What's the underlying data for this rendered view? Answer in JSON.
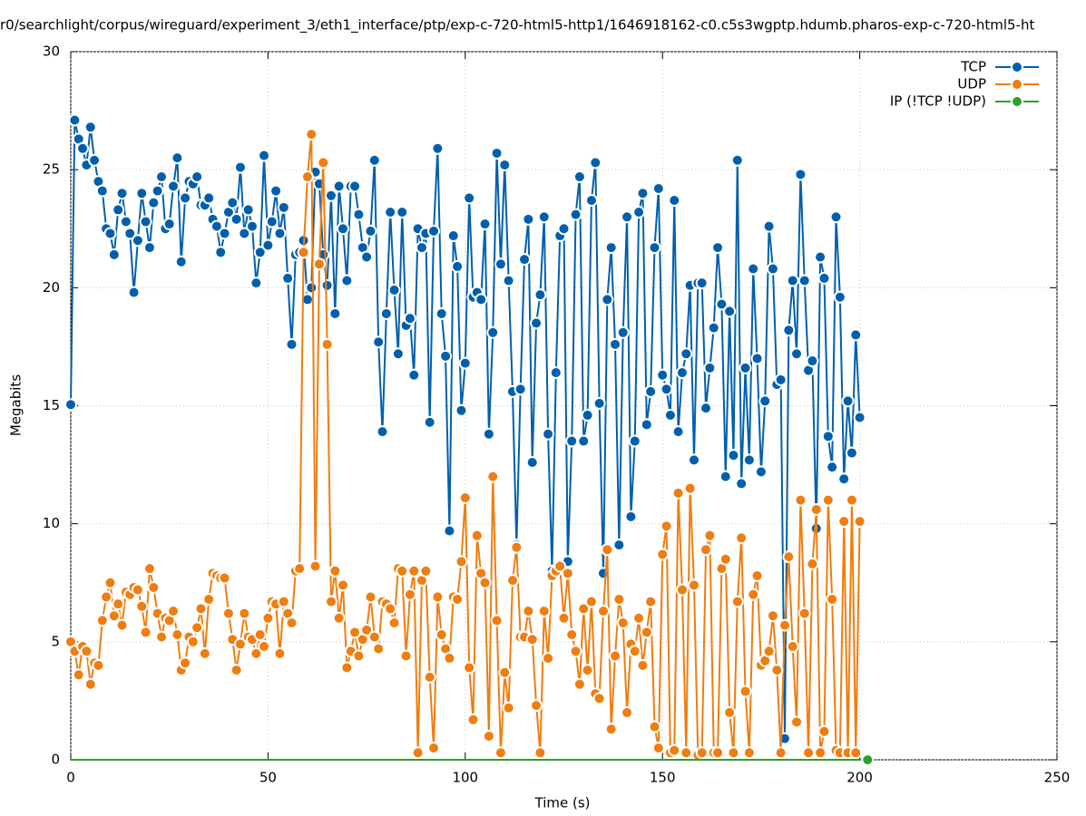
{
  "chart_data": {
    "type": "line",
    "title": "r0/searchlight/corpus/wireguard/experiment_3/eth1_interface/ptp/exp-c-720-html5-http1/1646918162-c0.c5s3wgptp.hdumb.pharos-exp-c-720-html5-ht",
    "xlabel": "Time (s)",
    "ylabel": "Megabits",
    "xlim": [
      0,
      250
    ],
    "ylim": [
      0,
      30
    ],
    "xticks": [
      0,
      50,
      100,
      150,
      200,
      250
    ],
    "yticks": [
      0,
      5,
      10,
      15,
      20,
      25,
      30
    ],
    "grid": true,
    "legend": "upper right",
    "x": [
      0,
      1,
      2,
      3,
      4,
      5,
      6,
      7,
      8,
      9,
      10,
      11,
      12,
      13,
      14,
      15,
      16,
      17,
      18,
      19,
      20,
      21,
      22,
      23,
      24,
      25,
      26,
      27,
      28,
      29,
      30,
      31,
      32,
      33,
      34,
      35,
      36,
      37,
      38,
      39,
      40,
      41,
      42,
      43,
      44,
      45,
      46,
      47,
      48,
      49,
      50,
      51,
      52,
      53,
      54,
      55,
      56,
      57,
      58,
      59,
      60,
      61,
      62,
      63,
      64,
      65,
      66,
      67,
      68,
      69,
      70,
      71,
      72,
      73,
      74,
      75,
      76,
      77,
      78,
      79,
      80,
      81,
      82,
      83,
      84,
      85,
      86,
      87,
      88,
      89,
      90,
      91,
      92,
      93,
      94,
      95,
      96,
      97,
      98,
      99,
      100,
      101,
      102,
      103,
      104,
      105,
      106,
      107,
      108,
      109,
      110,
      111,
      112,
      113,
      114,
      115,
      116,
      117,
      118,
      119,
      120,
      121,
      122,
      123,
      124,
      125,
      126,
      127,
      128,
      129,
      130,
      131,
      132,
      133,
      134,
      135,
      136,
      137,
      138,
      139,
      140,
      141,
      142,
      143,
      144,
      145,
      146,
      147,
      148,
      149,
      150,
      151,
      152,
      153,
      154,
      155,
      156,
      157,
      158,
      159,
      160,
      161,
      162,
      163,
      164,
      165,
      166,
      167,
      168,
      169,
      170,
      171,
      172,
      173,
      174,
      175,
      176,
      177,
      178,
      179,
      180,
      181,
      182,
      183,
      184,
      185,
      186,
      187,
      188,
      189,
      190,
      191,
      192,
      193,
      194,
      195,
      196,
      197,
      198,
      199,
      200
    ],
    "series": [
      {
        "name": "TCP",
        "color": "#005fad",
        "values": [
          15.05,
          27.1,
          26.3,
          25.9,
          25.2,
          26.8,
          25.4,
          24.5,
          24.1,
          22.5,
          22.3,
          21.4,
          23.3,
          24.0,
          22.8,
          22.3,
          19.8,
          22.0,
          24.0,
          22.8,
          21.7,
          23.6,
          24.1,
          24.7,
          22.5,
          22.7,
          24.3,
          25.5,
          21.1,
          23.8,
          24.5,
          24.4,
          24.7,
          23.5,
          23.5,
          23.8,
          22.9,
          22.6,
          21.5,
          22.3,
          23.2,
          23.6,
          22.9,
          25.1,
          22.3,
          23.3,
          22.6,
          20.2,
          21.5,
          25.6,
          21.8,
          22.8,
          24.1,
          22.3,
          23.4,
          20.4,
          17.6,
          21.4,
          21.5,
          22.0,
          19.5,
          20.0,
          24.9,
          24.4,
          21.4,
          20.1,
          23.9,
          18.9,
          24.3,
          22.5,
          20.3,
          24.3,
          24.3,
          23.1,
          21.7,
          21.3,
          22.4,
          25.4,
          17.7,
          13.9,
          18.9,
          23.2,
          19.9,
          17.2,
          23.2,
          18.4,
          18.7,
          16.3,
          22.5,
          21.7,
          22.3,
          14.3,
          22.4,
          25.9,
          18.9,
          17.1,
          9.7,
          22.2,
          20.9,
          14.8,
          16.8,
          23.8,
          19.6,
          19.8,
          19.5,
          22.7,
          13.8,
          18.1,
          25.7,
          21.0,
          25.2,
          20.3,
          15.6,
          9.1,
          15.7,
          21.2,
          22.9,
          12.6,
          18.5,
          19.7,
          23.0,
          13.8,
          8.0,
          16.4,
          22.2,
          22.5,
          8.4,
          13.5,
          23.1,
          24.7,
          13.5,
          14.6,
          23.7,
          25.3,
          15.1,
          7.9,
          19.5,
          21.7,
          17.6,
          9.1,
          18.1,
          23.0,
          10.3,
          13.5,
          23.2,
          24.0,
          14.2,
          15.6,
          21.7,
          24.2,
          16.3,
          15.7,
          14.6,
          23.7,
          13.9,
          16.4,
          17.2,
          20.1,
          12.7,
          20.2,
          20.2,
          14.9,
          16.6,
          18.3,
          21.7,
          19.3,
          12.0,
          19.0,
          12.9,
          25.4,
          11.7,
          16.6,
          12.7,
          20.8,
          17.0,
          12.2,
          15.2,
          22.6,
          20.8,
          15.9,
          16.1,
          0.9,
          18.2,
          20.3,
          17.2,
          24.8,
          20.3,
          16.5,
          16.9,
          9.8,
          21.3,
          20.4,
          13.7,
          12.4,
          23.0,
          19.6,
          11.9,
          15.2,
          13.0,
          18.0,
          14.5
        ]
      },
      {
        "name": "UDP",
        "color": "#f07d0f",
        "values": [
          5.0,
          4.6,
          3.6,
          4.8,
          4.6,
          3.2,
          4.1,
          4.0,
          5.9,
          6.9,
          7.5,
          6.1,
          6.6,
          5.7,
          7.1,
          7.0,
          7.3,
          7.2,
          6.5,
          5.4,
          8.1,
          7.3,
          6.2,
          5.2,
          6.0,
          5.9,
          6.3,
          5.3,
          3.8,
          4.1,
          5.2,
          5.0,
          5.6,
          6.4,
          4.5,
          6.8,
          7.9,
          7.8,
          7.7,
          7.7,
          6.2,
          5.1,
          3.8,
          4.9,
          6.2,
          5.2,
          5.1,
          4.5,
          5.3,
          4.8,
          6.0,
          6.7,
          6.6,
          4.5,
          6.7,
          6.2,
          5.8,
          8.0,
          8.1,
          21.5,
          24.7,
          26.5,
          8.2,
          21.0,
          25.3,
          17.6,
          6.7,
          8.0,
          6.0,
          7.4,
          3.9,
          4.6,
          5.4,
          4.4,
          5.1,
          5.5,
          6.9,
          5.2,
          4.7,
          6.7,
          6.6,
          6.4,
          5.8,
          8.1,
          8.0,
          4.4,
          7.0,
          8.0,
          0.3,
          7.6,
          8.0,
          3.5,
          0.5,
          6.9,
          5.3,
          4.7,
          4.3,
          6.9,
          6.8,
          8.4,
          11.1,
          3.9,
          1.7,
          9.5,
          7.9,
          7.5,
          1.0,
          12.0,
          5.9,
          0.3,
          3.7,
          2.2,
          7.6,
          9.0,
          5.2,
          5.2,
          6.3,
          5.1,
          2.3,
          0.3,
          6.3,
          4.3,
          7.8,
          8.0,
          8.2,
          6.0,
          7.9,
          5.3,
          4.6,
          3.2,
          6.4,
          3.8,
          6.7,
          2.8,
          2.6,
          6.3,
          8.9,
          1.3,
          4.4,
          6.8,
          5.8,
          2.0,
          4.9,
          4.6,
          6.0,
          4.0,
          5.4,
          6.7,
          1.4,
          0.5,
          8.7,
          9.9,
          0.3,
          0.4,
          11.3,
          7.2,
          0.3,
          11.5,
          7.4,
          0.2,
          0.3,
          8.9,
          9.5,
          0.3,
          0.3,
          8.1,
          8.5,
          2.0,
          0.3,
          6.7,
          9.4,
          2.9,
          0.3,
          7.0,
          7.8,
          4.0,
          4.2,
          4.6,
          6.1,
          3.8,
          0.3,
          5.7,
          8.6,
          4.8,
          1.6,
          11.0,
          6.2,
          0.3,
          8.3,
          10.6,
          0.3,
          1.2,
          11.0,
          6.8,
          0.4,
          0.3,
          10.1,
          0.3,
          11.0,
          0.3,
          10.1
        ]
      },
      {
        "name": "IP (!TCP  !UDP)",
        "color": "#2ca02c",
        "x": [
          0,
          202
        ],
        "values": [
          0,
          0
        ]
      }
    ]
  }
}
